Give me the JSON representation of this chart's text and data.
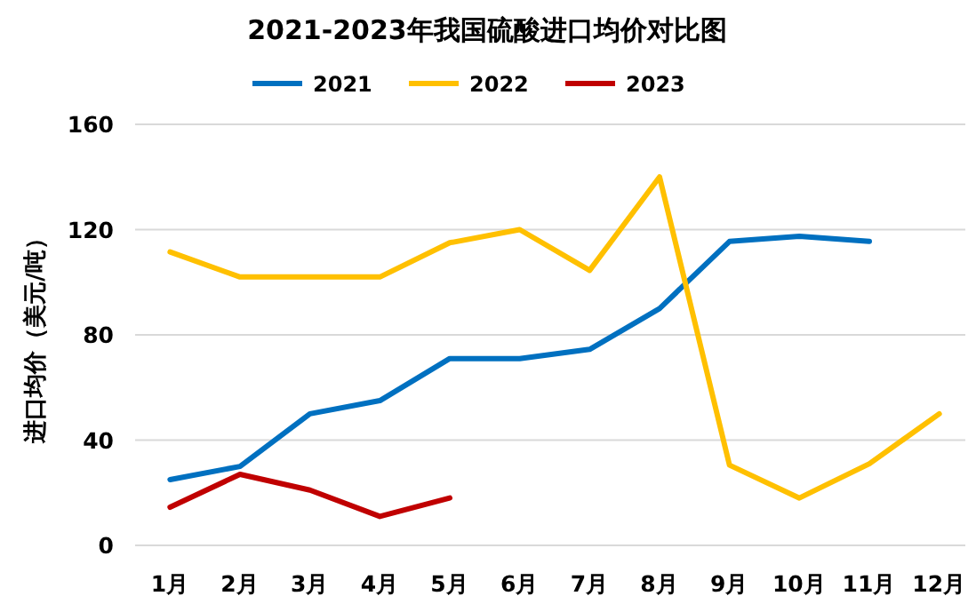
{
  "chart_data": {
    "type": "line",
    "title": "2021-2023年我国硫酸进口均价对比图",
    "ylabel": "进口均价（美元/吨）",
    "categories": [
      "1月",
      "2月",
      "3月",
      "4月",
      "5月",
      "6月",
      "7月",
      "8月",
      "9月",
      "10月",
      "11月",
      "12月"
    ],
    "series": [
      {
        "name": "2021",
        "color": "#0070c0",
        "values": [
          25,
          30,
          50,
          55,
          71,
          71,
          74.5,
          90,
          115.5,
          117.5,
          115.5,
          null
        ]
      },
      {
        "name": "2022",
        "color": "#ffc000",
        "values": [
          111.5,
          102,
          102,
          102,
          115,
          120,
          104.5,
          140,
          30.5,
          18,
          31,
          50
        ]
      },
      {
        "name": "2023",
        "color": "#c00000",
        "values": [
          14.5,
          27,
          21,
          11,
          18,
          null,
          null,
          null,
          null,
          null,
          null,
          null
        ]
      }
    ],
    "ylim": [
      0,
      160
    ],
    "yticks": [
      0,
      40,
      80,
      120,
      160
    ],
    "grid": "y",
    "legend": "top",
    "marker": "none",
    "line_style": "solid"
  }
}
